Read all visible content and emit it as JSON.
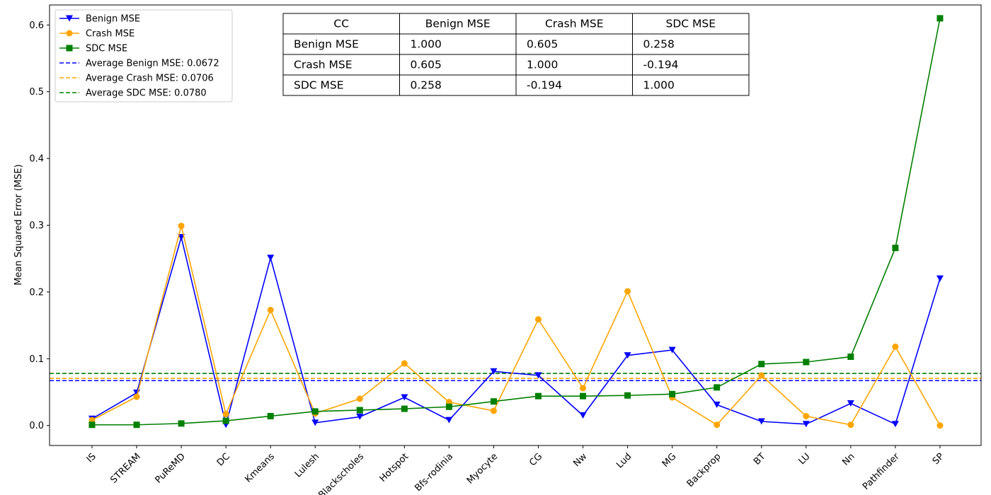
{
  "chart_data": {
    "type": "line",
    "title": "",
    "xlabel": "",
    "ylabel": "Mean Squared Error (MSE)",
    "ylim": [
      -0.03,
      0.63
    ],
    "yticks": [
      0.0,
      0.1,
      0.2,
      0.3,
      0.4,
      0.5,
      0.6
    ],
    "ytick_labels": [
      "0.0",
      "0.1",
      "0.2",
      "0.3",
      "0.4",
      "0.5",
      "0.6"
    ],
    "grid": false,
    "legend_position": "top-left",
    "categories": [
      "IS",
      "STREAM",
      "PuReMD",
      "DC",
      "Kmeans",
      "Lulesh",
      "Blackscholes",
      "Hotspot",
      "Bfs-rodinia",
      "Myocyte",
      "CG",
      "Nw",
      "Lud",
      "MG",
      "Backprop",
      "BT",
      "LU",
      "Nn",
      "Pathfinder",
      "SP"
    ],
    "series": [
      {
        "name": "Benign MSE",
        "color": "#0000ff",
        "marker": "triangle-down",
        "values": [
          0.01,
          0.049,
          0.282,
          0.001,
          0.251,
          0.004,
          0.013,
          0.042,
          0.008,
          0.081,
          0.075,
          0.015,
          0.105,
          0.113,
          0.031,
          0.006,
          0.002,
          0.033,
          0.002,
          0.22
        ]
      },
      {
        "name": "Crash MSE",
        "color": "#ffa500",
        "marker": "circle",
        "values": [
          0.008,
          0.043,
          0.299,
          0.017,
          0.173,
          0.018,
          0.04,
          0.093,
          0.035,
          0.022,
          0.159,
          0.056,
          0.201,
          0.042,
          0.001,
          0.075,
          0.014,
          0.001,
          0.118,
          0.0
        ]
      },
      {
        "name": "SDC MSE",
        "color": "#008000",
        "marker": "square",
        "values": [
          0.001,
          0.001,
          0.003,
          0.007,
          0.014,
          0.021,
          0.023,
          0.025,
          0.028,
          0.036,
          0.044,
          0.044,
          0.045,
          0.047,
          0.057,
          0.092,
          0.095,
          0.103,
          0.266,
          0.61
        ]
      }
    ],
    "averages": [
      {
        "name": "Average Benign MSE: 0.0672",
        "value": 0.0672,
        "color": "#0000ff"
      },
      {
        "name": "Average Crash MSE: 0.0706",
        "value": 0.0706,
        "color": "#ffa500"
      },
      {
        "name": "Average SDC MSE: 0.0780",
        "value": 0.078,
        "color": "#008000"
      }
    ],
    "table": {
      "header": [
        "CC",
        "Benign MSE",
        "Crash MSE",
        "SDC MSE"
      ],
      "rows": [
        [
          "Benign MSE",
          "1.000",
          "0.605",
          "0.258"
        ],
        [
          "Crash MSE",
          "0.605",
          "1.000",
          "-0.194"
        ],
        [
          "SDC MSE",
          "0.258",
          "-0.194",
          "1.000"
        ]
      ]
    }
  }
}
